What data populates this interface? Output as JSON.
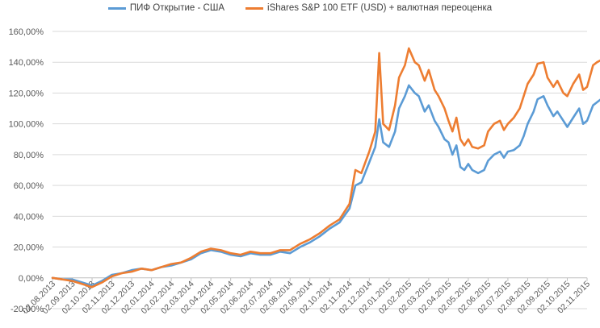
{
  "chart_data": {
    "type": "line",
    "title": "",
    "xlabel": "",
    "ylabel": "",
    "ylim": [
      -20,
      160
    ],
    "yticks": [
      -20,
      0,
      20,
      40,
      60,
      80,
      100,
      120,
      140,
      160
    ],
    "ytick_labels": [
      "-20,00%",
      "0,00%",
      "20,00%",
      "40,00%",
      "60,00%",
      "80,00%",
      "100,00%",
      "120,00%",
      "140,00%",
      "160,00%"
    ],
    "xtick_labels": [
      "02.08.2013",
      "02.09.2013",
      "02.10.2013",
      "02.11.2013",
      "02.12.2013",
      "02.01.2014",
      "02.02.2014",
      "02.03.2014",
      "02.04.2014",
      "02.05.2014",
      "02.06.2014",
      "02.07.2014",
      "02.08.2014",
      "02.09.2014",
      "02.10.2014",
      "02.11.2014",
      "02.12.2014",
      "02.01.2015",
      "02.02.2015",
      "02.03.2015",
      "02.04.2015",
      "02.05.2015",
      "02.06.2015",
      "02.07.2015",
      "02.08.2015",
      "02.09.2015",
      "02.10.2015",
      "02.11.2015"
    ],
    "grid": true,
    "legend_position": "top",
    "series": [
      {
        "name": "ПИФ Открытие - США",
        "color": "#5B9BD5",
        "points": [
          [
            0.0,
            0
          ],
          [
            0.5,
            -1
          ],
          [
            1.0,
            -1
          ],
          [
            1.5,
            -3
          ],
          [
            2.0,
            -5
          ],
          [
            2.5,
            -2
          ],
          [
            3.0,
            2
          ],
          [
            3.5,
            3
          ],
          [
            4.0,
            5
          ],
          [
            4.5,
            6
          ],
          [
            5.0,
            5
          ],
          [
            5.5,
            7
          ],
          [
            6.0,
            8
          ],
          [
            6.5,
            10
          ],
          [
            7.0,
            12
          ],
          [
            7.5,
            16
          ],
          [
            8.0,
            18
          ],
          [
            8.5,
            17
          ],
          [
            9.0,
            15
          ],
          [
            9.5,
            14
          ],
          [
            10.0,
            16
          ],
          [
            10.5,
            15
          ],
          [
            11.0,
            15
          ],
          [
            11.5,
            17
          ],
          [
            12.0,
            16
          ],
          [
            12.5,
            20
          ],
          [
            13.0,
            23
          ],
          [
            13.5,
            27
          ],
          [
            14.0,
            32
          ],
          [
            14.5,
            36
          ],
          [
            15.0,
            45
          ],
          [
            15.3,
            60
          ],
          [
            15.6,
            62
          ],
          [
            16.0,
            75
          ],
          [
            16.3,
            85
          ],
          [
            16.5,
            103
          ],
          [
            16.7,
            88
          ],
          [
            17.0,
            85
          ],
          [
            17.3,
            95
          ],
          [
            17.5,
            110
          ],
          [
            17.8,
            118
          ],
          [
            18.0,
            125
          ],
          [
            18.3,
            120
          ],
          [
            18.5,
            118
          ],
          [
            18.8,
            108
          ],
          [
            19.0,
            112
          ],
          [
            19.3,
            102
          ],
          [
            19.5,
            98
          ],
          [
            19.8,
            90
          ],
          [
            20.0,
            88
          ],
          [
            20.2,
            80
          ],
          [
            20.4,
            86
          ],
          [
            20.6,
            72
          ],
          [
            20.8,
            70
          ],
          [
            21.0,
            74
          ],
          [
            21.2,
            70
          ],
          [
            21.5,
            68
          ],
          [
            21.8,
            70
          ],
          [
            22.0,
            76
          ],
          [
            22.3,
            80
          ],
          [
            22.6,
            82
          ],
          [
            22.8,
            78
          ],
          [
            23.0,
            82
          ],
          [
            23.3,
            83
          ],
          [
            23.6,
            86
          ],
          [
            23.8,
            92
          ],
          [
            24.0,
            100
          ],
          [
            24.3,
            108
          ],
          [
            24.5,
            116
          ],
          [
            24.8,
            118
          ],
          [
            25.0,
            112
          ],
          [
            25.3,
            105
          ],
          [
            25.5,
            108
          ],
          [
            25.8,
            102
          ],
          [
            26.0,
            98
          ],
          [
            26.3,
            104
          ],
          [
            26.6,
            110
          ],
          [
            26.8,
            100
          ],
          [
            27.0,
            102
          ],
          [
            27.3,
            112
          ],
          [
            27.5,
            114
          ],
          [
            27.8,
            117
          ],
          [
            28.0,
            119
          ]
        ]
      },
      {
        "name": "iShares S&P 100 ETF (USD) + валютная переоценка",
        "color": "#ED7D31",
        "points": [
          [
            0.0,
            0
          ],
          [
            0.5,
            -1
          ],
          [
            1.0,
            -2
          ],
          [
            1.5,
            -4
          ],
          [
            2.0,
            -6
          ],
          [
            2.5,
            -3
          ],
          [
            3.0,
            1
          ],
          [
            3.5,
            3
          ],
          [
            4.0,
            4
          ],
          [
            4.5,
            6
          ],
          [
            5.0,
            5
          ],
          [
            5.5,
            7
          ],
          [
            6.0,
            9
          ],
          [
            6.5,
            10
          ],
          [
            7.0,
            13
          ],
          [
            7.5,
            17
          ],
          [
            8.0,
            19
          ],
          [
            8.5,
            18
          ],
          [
            9.0,
            16
          ],
          [
            9.5,
            15
          ],
          [
            10.0,
            17
          ],
          [
            10.5,
            16
          ],
          [
            11.0,
            16
          ],
          [
            11.5,
            18
          ],
          [
            12.0,
            18
          ],
          [
            12.5,
            22
          ],
          [
            13.0,
            25
          ],
          [
            13.5,
            29
          ],
          [
            14.0,
            34
          ],
          [
            14.5,
            38
          ],
          [
            15.0,
            48
          ],
          [
            15.3,
            70
          ],
          [
            15.6,
            68
          ],
          [
            16.0,
            82
          ],
          [
            16.3,
            95
          ],
          [
            16.5,
            146
          ],
          [
            16.7,
            100
          ],
          [
            17.0,
            96
          ],
          [
            17.3,
            112
          ],
          [
            17.5,
            130
          ],
          [
            17.8,
            138
          ],
          [
            18.0,
            149
          ],
          [
            18.3,
            140
          ],
          [
            18.5,
            138
          ],
          [
            18.8,
            128
          ],
          [
            19.0,
            135
          ],
          [
            19.3,
            122
          ],
          [
            19.5,
            118
          ],
          [
            19.8,
            110
          ],
          [
            20.0,
            102
          ],
          [
            20.2,
            95
          ],
          [
            20.4,
            104
          ],
          [
            20.6,
            90
          ],
          [
            20.8,
            86
          ],
          [
            21.0,
            90
          ],
          [
            21.2,
            85
          ],
          [
            21.5,
            84
          ],
          [
            21.8,
            86
          ],
          [
            22.0,
            95
          ],
          [
            22.3,
            100
          ],
          [
            22.6,
            102
          ],
          [
            22.8,
            96
          ],
          [
            23.0,
            100
          ],
          [
            23.3,
            104
          ],
          [
            23.6,
            110
          ],
          [
            23.8,
            118
          ],
          [
            24.0,
            126
          ],
          [
            24.3,
            132
          ],
          [
            24.5,
            139
          ],
          [
            24.8,
            140
          ],
          [
            25.0,
            130
          ],
          [
            25.3,
            124
          ],
          [
            25.5,
            128
          ],
          [
            25.8,
            120
          ],
          [
            26.0,
            118
          ],
          [
            26.3,
            126
          ],
          [
            26.6,
            132
          ],
          [
            26.8,
            122
          ],
          [
            27.0,
            124
          ],
          [
            27.3,
            138
          ],
          [
            27.5,
            140
          ],
          [
            27.8,
            142
          ],
          [
            28.0,
            143
          ]
        ]
      }
    ]
  }
}
